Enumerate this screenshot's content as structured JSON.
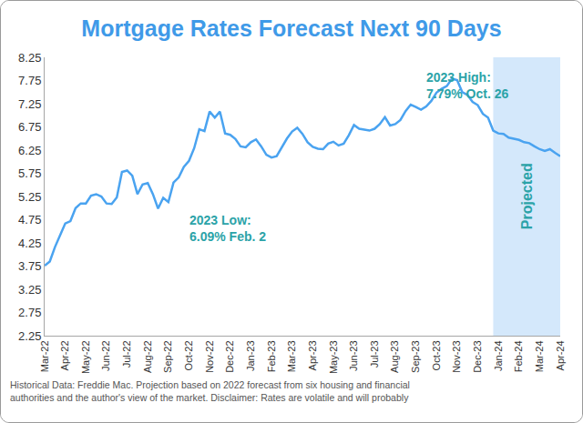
{
  "chart_data": {
    "type": "line",
    "title": "Mortgage Rates Forecast Next 90 Days",
    "categories": [
      "Mar-22",
      null,
      null,
      null,
      "Apr-22",
      null,
      null,
      null,
      "May-22",
      null,
      null,
      null,
      "Jun-22",
      null,
      null,
      null,
      "Jul-22",
      null,
      null,
      null,
      "Aug-22",
      null,
      null,
      null,
      "Sep-22",
      null,
      null,
      null,
      "Oct-22",
      null,
      null,
      null,
      "Nov-22",
      null,
      null,
      null,
      "Dec-22",
      null,
      null,
      null,
      "Jan-23",
      null,
      null,
      null,
      "Feb-23",
      null,
      null,
      null,
      "Mar-23",
      null,
      null,
      null,
      "Apr-23",
      null,
      null,
      null,
      "May-23",
      null,
      null,
      null,
      "Jun-23",
      null,
      null,
      null,
      "Jul-23",
      null,
      null,
      null,
      "Aug-23",
      null,
      null,
      null,
      "Sep-23",
      null,
      null,
      null,
      "Oct-23",
      null,
      null,
      null,
      "Nov-23",
      null,
      null,
      null,
      "Dec-23",
      null,
      null,
      null,
      "Jan-24",
      null,
      null,
      null,
      "Feb-24",
      null,
      null,
      null,
      "Mar-24",
      null,
      null,
      null,
      "Apr-24"
    ],
    "values": [
      3.76,
      3.85,
      4.16,
      4.42,
      4.67,
      4.72,
      5.0,
      5.1,
      5.1,
      5.27,
      5.3,
      5.25,
      5.1,
      5.09,
      5.23,
      5.78,
      5.81,
      5.7,
      5.3,
      5.51,
      5.54,
      5.3,
      4.99,
      5.22,
      5.13,
      5.55,
      5.66,
      5.89,
      6.02,
      6.29,
      6.7,
      6.66,
      7.08,
      6.95,
      7.08,
      6.61,
      6.58,
      6.49,
      6.33,
      6.31,
      6.42,
      6.48,
      6.33,
      6.15,
      6.09,
      6.12,
      6.32,
      6.5,
      6.65,
      6.73,
      6.6,
      6.42,
      6.32,
      6.28,
      6.27,
      6.39,
      6.43,
      6.35,
      6.39,
      6.57,
      6.79,
      6.71,
      6.69,
      6.67,
      6.71,
      6.81,
      6.96,
      6.78,
      6.81,
      6.9,
      7.09,
      7.23,
      7.18,
      7.12,
      7.19,
      7.31,
      7.49,
      7.57,
      7.63,
      7.79,
      7.76,
      7.5,
      7.44,
      7.29,
      7.22,
      7.03,
      6.95,
      6.67,
      6.61,
      6.6,
      6.52,
      6.5,
      6.47,
      6.42,
      6.4,
      6.33,
      6.27,
      6.23,
      6.27,
      6.19,
      6.12
    ],
    "color": "#4aa3f0",
    "ylim": [
      2.25,
      8.25
    ],
    "yticks": [
      2.25,
      2.75,
      3.25,
      3.75,
      4.25,
      4.75,
      5.25,
      5.75,
      6.25,
      6.75,
      7.25,
      7.75,
      8.25
    ],
    "grid": false,
    "annotations": [
      {
        "text": [
          "2023 High:",
          "7.79% Oct. 26"
        ]
      },
      {
        "text": [
          "2023 Low:",
          "6.09% Feb. 2"
        ]
      },
      {
        "text": [
          "Projected"
        ],
        "x": [
          "Jan-24",
          "Apr-24"
        ]
      }
    ],
    "footnote": [
      "Historical Data: Freddie Mac. Projection based on 2022 forecast from six housing and financial",
      "authorities and the author's view of the market. Disclaimer: Rates are volatile and will probably"
    ]
  }
}
